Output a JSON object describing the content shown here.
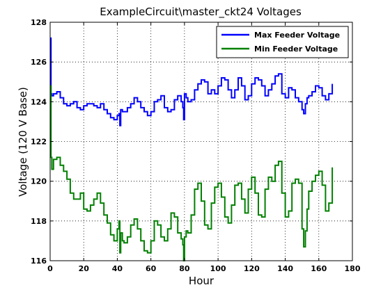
{
  "chart_data": {
    "type": "line",
    "title": "ExampleCircuit\\master_ckt24 Voltages",
    "xlabel": "Hour",
    "ylabel": "Voltage (120 V Base)",
    "xlim": [
      0,
      180
    ],
    "ylim": [
      116,
      128
    ],
    "xticks": [
      0,
      20,
      40,
      60,
      80,
      100,
      120,
      140,
      160,
      180
    ],
    "yticks": [
      116,
      118,
      120,
      122,
      124,
      126,
      128
    ],
    "grid": true,
    "legend_position": "top-right",
    "series": [
      {
        "name": "Max Feeder Voltage",
        "color": "#0000ff",
        "x": [
          0,
          0.5,
          1,
          2,
          4,
          6,
          8,
          10,
          12,
          14,
          16,
          18,
          20,
          22,
          24,
          26,
          28,
          30,
          32,
          34,
          36,
          38,
          40,
          41,
          41.5,
          42,
          43,
          44,
          46,
          48,
          50,
          52,
          54,
          56,
          58,
          60,
          62,
          64,
          66,
          68,
          70,
          72,
          74,
          76,
          78,
          79,
          79.5,
          80,
          81,
          82,
          84,
          86,
          88,
          90,
          92,
          94,
          96,
          98,
          100,
          102,
          104,
          106,
          108,
          110,
          112,
          114,
          116,
          118,
          120,
          122,
          124,
          126,
          128,
          130,
          132,
          134,
          136,
          138,
          140,
          142,
          144,
          146,
          148,
          150,
          151,
          152,
          153,
          154,
          156,
          158,
          160,
          162,
          164,
          166,
          168
        ],
        "y": [
          127.2,
          124.4,
          124.3,
          124.4,
          124.5,
          124.2,
          123.9,
          123.8,
          123.9,
          124.0,
          123.7,
          123.6,
          123.8,
          123.9,
          123.9,
          123.8,
          123.7,
          123.9,
          123.6,
          123.4,
          123.2,
          123.1,
          123.3,
          123.4,
          122.8,
          123.6,
          123.5,
          123.5,
          123.7,
          123.9,
          124.2,
          124.0,
          123.7,
          123.5,
          123.3,
          123.5,
          124.0,
          124.1,
          124.3,
          123.7,
          123.5,
          123.6,
          124.1,
          124.3,
          124.0,
          123.7,
          123.1,
          124.4,
          124.2,
          124.0,
          124.1,
          124.6,
          124.9,
          125.1,
          125.0,
          124.4,
          124.6,
          124.4,
          124.8,
          125.2,
          125.1,
          124.6,
          124.2,
          124.6,
          125.2,
          124.8,
          124.1,
          124.3,
          124.9,
          125.2,
          125.1,
          124.8,
          124.3,
          124.6,
          124.9,
          125.3,
          125.4,
          124.4,
          124.2,
          124.7,
          124.6,
          124.2,
          124.0,
          123.6,
          123.4,
          123.9,
          124.2,
          124.3,
          124.5,
          124.8,
          124.7,
          124.3,
          124.1,
          124.4,
          124.9
        ]
      },
      {
        "name": "Min Feeder Voltage",
        "color": "#008000",
        "x": [
          0,
          0.5,
          1,
          2,
          4,
          6,
          8,
          10,
          12,
          14,
          16,
          18,
          20,
          22,
          24,
          26,
          28,
          30,
          32,
          34,
          36,
          38,
          40,
          41,
          41.5,
          42,
          43,
          44,
          46,
          48,
          50,
          52,
          54,
          56,
          58,
          60,
          62,
          64,
          66,
          68,
          70,
          72,
          74,
          76,
          78,
          79,
          79.5,
          80,
          81,
          82,
          84,
          86,
          88,
          90,
          92,
          94,
          96,
          98,
          100,
          102,
          104,
          106,
          108,
          110,
          112,
          114,
          116,
          118,
          120,
          122,
          124,
          126,
          128,
          130,
          132,
          134,
          136,
          138,
          140,
          142,
          144,
          146,
          148,
          150,
          151,
          152,
          153,
          154,
          156,
          158,
          160,
          162,
          164,
          166,
          168
        ],
        "y": [
          124.8,
          121.2,
          120.6,
          121.1,
          121.2,
          120.8,
          120.5,
          120.1,
          119.4,
          119.1,
          119.1,
          119.4,
          118.6,
          118.5,
          118.8,
          119.1,
          119.4,
          118.9,
          118.3,
          117.9,
          117.3,
          117.0,
          117.6,
          118.0,
          116.4,
          117.4,
          117.0,
          116.9,
          117.2,
          117.8,
          118.1,
          117.6,
          117.0,
          116.5,
          116.4,
          117.0,
          118.0,
          117.8,
          117.2,
          117.0,
          117.6,
          118.4,
          118.2,
          117.4,
          117.1,
          116.8,
          116.0,
          117.2,
          117.5,
          117.4,
          118.3,
          119.6,
          119.9,
          119.0,
          117.8,
          117.6,
          118.9,
          119.7,
          119.9,
          119.2,
          118.2,
          117.9,
          118.8,
          119.8,
          119.9,
          119.1,
          118.4,
          119.6,
          120.2,
          119.4,
          118.3,
          118.2,
          119.6,
          120.2,
          120.0,
          120.8,
          121.0,
          119.4,
          118.2,
          118.5,
          119.9,
          120.1,
          119.9,
          117.6,
          116.7,
          117.5,
          118.6,
          119.5,
          120.0,
          120.3,
          120.5,
          119.8,
          118.5,
          118.9,
          120.7
        ]
      }
    ]
  }
}
